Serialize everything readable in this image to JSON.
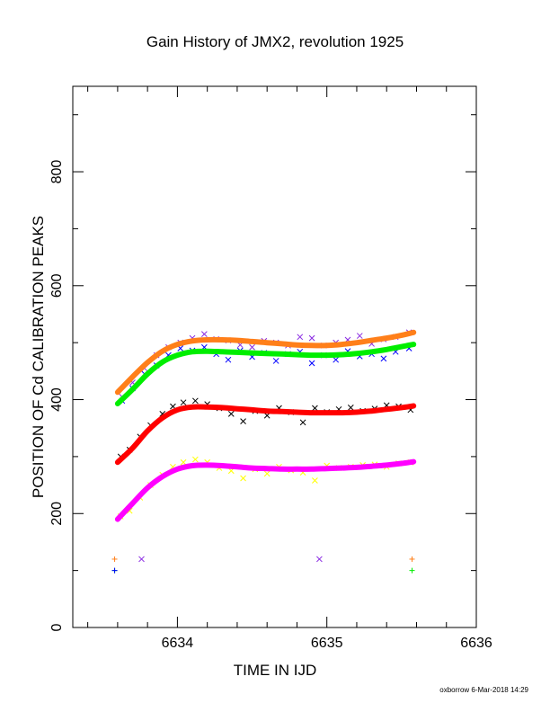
{
  "chart_data": {
    "type": "scatter",
    "title": "Gain History of JMX2, revolution 1925",
    "xlabel": "TIME IN IJD",
    "ylabel": "POSITION OF Cd CALIBRATION PEAKS",
    "xlim": [
      6633.3,
      6636
    ],
    "ylim": [
      0,
      950
    ],
    "x_ticks": [
      6634,
      6635,
      6636
    ],
    "y_ticks": [
      0,
      200,
      400,
      600,
      800
    ],
    "grid": false,
    "legend": "none",
    "footer": "oxborrow  6-Mar-2018 14:29",
    "series": [
      {
        "mark": "scatter",
        "marker": "x",
        "color": "#8a2be2",
        "x": [
          6633.63,
          6633.7,
          6633.78,
          6633.86,
          6633.94,
          6634.02,
          6634.1,
          6634.18,
          6634.26,
          6634.34,
          6634.42,
          6634.5,
          6634.58,
          6634.66,
          6634.74,
          6634.82,
          6634.9,
          6634.98,
          6635.06,
          6635.14,
          6635.22,
          6635.3,
          6635.38,
          6635.46,
          6635.55
        ],
        "y": [
          405,
          430,
          455,
          478,
          492,
          500,
          508,
          515,
          506,
          504,
          496,
          492,
          503,
          500,
          495,
          510,
          508,
          495,
          500,
          505,
          512,
          498,
          506,
          510,
          518
        ]
      },
      {
        "mark": "scatter",
        "marker": "x",
        "color": "#0000ff",
        "x": [
          6633.63,
          6633.7,
          6633.78,
          6633.86,
          6633.94,
          6634.02,
          6634.1,
          6634.18,
          6634.26,
          6634.34,
          6634.42,
          6634.5,
          6634.58,
          6634.66,
          6634.74,
          6634.82,
          6634.9,
          6634.98,
          6635.06,
          6635.14,
          6635.22,
          6635.3,
          6635.38,
          6635.46,
          6635.55
        ],
        "y": [
          398,
          420,
          445,
          460,
          478,
          490,
          486,
          492,
          480,
          470,
          486,
          475,
          482,
          468,
          480,
          484,
          464,
          478,
          470,
          485,
          476,
          480,
          472,
          484,
          490
        ]
      },
      {
        "mark": "line",
        "color": "#ff7f1a",
        "x": [
          6633.6,
          6633.7,
          6633.8,
          6633.9,
          6634.0,
          6634.1,
          6634.2,
          6634.3,
          6634.4,
          6634.5,
          6634.6,
          6634.7,
          6634.8,
          6634.9,
          6635.0,
          6635.1,
          6635.2,
          6635.3,
          6635.4,
          6635.5,
          6635.58
        ],
        "y": [
          413,
          440,
          465,
          485,
          497,
          503,
          505,
          505,
          504,
          502,
          500,
          498,
          496,
          495,
          495,
          497,
          500,
          504,
          508,
          513,
          518
        ]
      },
      {
        "mark": "line",
        "color": "#00ee00",
        "x": [
          6633.6,
          6633.7,
          6633.8,
          6633.9,
          6634.0,
          6634.1,
          6634.2,
          6634.3,
          6634.4,
          6634.5,
          6634.6,
          6634.7,
          6634.8,
          6634.9,
          6635.0,
          6635.1,
          6635.2,
          6635.3,
          6635.4,
          6635.5,
          6635.58
        ],
        "y": [
          393,
          418,
          445,
          466,
          478,
          484,
          485,
          484,
          483,
          482,
          481,
          480,
          479,
          478,
          478,
          479,
          481,
          484,
          488,
          493,
          497
        ]
      },
      {
        "mark": "scatter",
        "marker": "x",
        "color": "#000000",
        "x": [
          6633.62,
          6633.68,
          6633.75,
          6633.82,
          6633.9,
          6633.97,
          6634.04,
          6634.12,
          6634.2,
          6634.28,
          6634.36,
          6634.44,
          6634.52,
          6634.6,
          6634.68,
          6634.76,
          6634.84,
          6634.92,
          6635.0,
          6635.08,
          6635.16,
          6635.24,
          6635.32,
          6635.4,
          6635.48,
          6635.56
        ],
        "y": [
          300,
          312,
          335,
          355,
          375,
          388,
          395,
          398,
          392,
          385,
          375,
          362,
          380,
          372,
          385,
          378,
          360,
          385,
          378,
          383,
          386,
          380,
          384,
          390,
          388,
          382
        ]
      },
      {
        "mark": "line",
        "color": "#ff0000",
        "x": [
          6633.6,
          6633.7,
          6633.8,
          6633.9,
          6634.0,
          6634.1,
          6634.2,
          6634.3,
          6634.4,
          6634.5,
          6634.6,
          6634.7,
          6634.8,
          6634.9,
          6635.0,
          6635.1,
          6635.2,
          6635.3,
          6635.4,
          6635.5,
          6635.58
        ],
        "y": [
          290,
          315,
          345,
          368,
          382,
          387,
          387,
          386,
          384,
          382,
          380,
          379,
          378,
          377,
          377,
          377,
          378,
          380,
          383,
          386,
          389
        ]
      },
      {
        "mark": "scatter",
        "marker": "x",
        "color": "#ffff00",
        "x": [
          6633.62,
          6633.68,
          6633.75,
          6633.82,
          6633.9,
          6633.97,
          6634.04,
          6634.12,
          6634.2,
          6634.28,
          6634.36,
          6634.44,
          6634.52,
          6634.6,
          6634.68,
          6634.76,
          6634.84,
          6634.92,
          6635.0,
          6635.08,
          6635.16,
          6635.24,
          6635.32,
          6635.4,
          6635.48,
          6635.56
        ],
        "y": [
          195,
          205,
          228,
          250,
          268,
          282,
          290,
          295,
          290,
          280,
          275,
          262,
          278,
          270,
          282,
          276,
          272,
          258,
          284,
          280,
          282,
          285,
          286,
          282,
          288,
          290
        ]
      },
      {
        "mark": "line",
        "color": "#ff00ff",
        "x": [
          6633.6,
          6633.7,
          6633.8,
          6633.9,
          6634.0,
          6634.1,
          6634.2,
          6634.3,
          6634.4,
          6634.5,
          6634.6,
          6634.7,
          6634.8,
          6634.9,
          6635.0,
          6635.1,
          6635.2,
          6635.3,
          6635.4,
          6635.5,
          6635.58
        ],
        "y": [
          190,
          218,
          245,
          265,
          278,
          284,
          285,
          284,
          282,
          280,
          279,
          278,
          278,
          278,
          279,
          280,
          281,
          283,
          285,
          288,
          291
        ]
      },
      {
        "mark": "scatter",
        "marker": "x",
        "color": "#8a2be2",
        "x": [
          6633.76,
          6634.95
        ],
        "y": [
          120,
          120
        ]
      },
      {
        "mark": "scatter",
        "marker": "+",
        "color": "#ff7f1a",
        "x": [
          6633.58,
          6635.57
        ],
        "y": [
          120,
          120
        ]
      },
      {
        "mark": "scatter",
        "marker": "+",
        "color": "#00ee00",
        "x": [
          6633.58,
          6635.57
        ],
        "y": [
          100,
          100
        ]
      },
      {
        "mark": "scatter",
        "marker": "+",
        "color": "#0000ff",
        "x": [
          6633.58
        ],
        "y": [
          100
        ]
      }
    ]
  }
}
